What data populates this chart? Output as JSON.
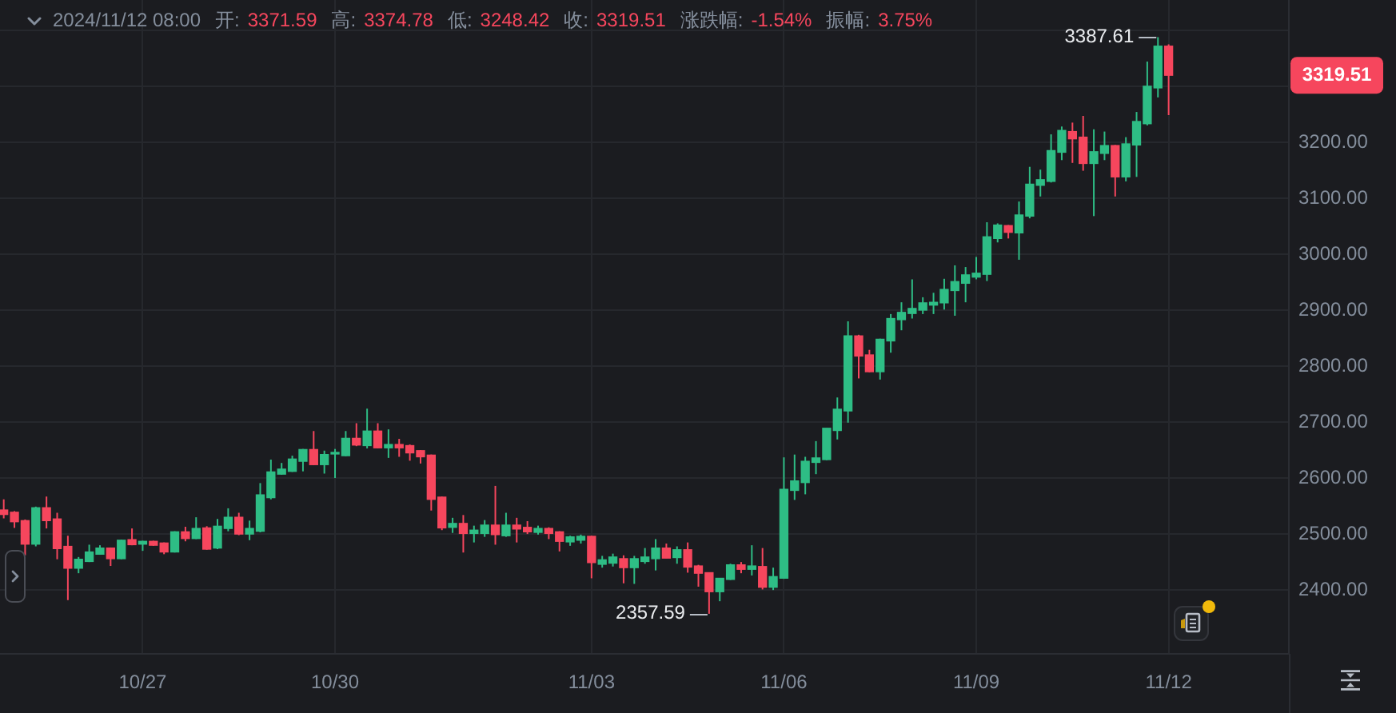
{
  "chart_data": {
    "type": "candlestick",
    "x": [
      "2024-10-25T04:00",
      "2024-10-25T08:00",
      "2024-10-25T12:00",
      "2024-10-25T16:00",
      "2024-10-25T20:00",
      "2024-10-26T00:00",
      "2024-10-26T04:00",
      "2024-10-26T08:00",
      "2024-10-26T12:00",
      "2024-10-26T16:00",
      "2024-10-26T20:00",
      "2024-10-27T00:00",
      "2024-10-27T04:00",
      "2024-10-27T08:00",
      "2024-10-27T12:00",
      "2024-10-27T16:00",
      "2024-10-27T20:00",
      "2024-10-28T00:00",
      "2024-10-28T04:00",
      "2024-10-28T08:00",
      "2024-10-28T12:00",
      "2024-10-28T16:00",
      "2024-10-28T20:00",
      "2024-10-29T00:00",
      "2024-10-29T04:00",
      "2024-10-29T08:00",
      "2024-10-29T12:00",
      "2024-10-29T16:00",
      "2024-10-29T20:00",
      "2024-10-30T00:00",
      "2024-10-30T04:00",
      "2024-10-30T08:00",
      "2024-10-30T12:00",
      "2024-10-30T16:00",
      "2024-10-30T20:00",
      "2024-10-31T00:00",
      "2024-10-31T04:00",
      "2024-10-31T08:00",
      "2024-10-31T12:00",
      "2024-10-31T16:00",
      "2024-10-31T20:00",
      "2024-11-01T00:00",
      "2024-11-01T04:00",
      "2024-11-01T08:00",
      "2024-11-01T12:00",
      "2024-11-01T16:00",
      "2024-11-01T20:00",
      "2024-11-02T00:00",
      "2024-11-02T04:00",
      "2024-11-02T08:00",
      "2024-11-02T12:00",
      "2024-11-02T16:00",
      "2024-11-02T20:00",
      "2024-11-03T00:00",
      "2024-11-03T04:00",
      "2024-11-03T08:00",
      "2024-11-03T12:00",
      "2024-11-03T16:00",
      "2024-11-03T20:00",
      "2024-11-04T00:00",
      "2024-11-04T04:00",
      "2024-11-04T08:00",
      "2024-11-04T12:00",
      "2024-11-04T16:00",
      "2024-11-04T20:00",
      "2024-11-05T00:00",
      "2024-11-05T04:00",
      "2024-11-05T08:00",
      "2024-11-05T12:00",
      "2024-11-05T16:00",
      "2024-11-05T20:00",
      "2024-11-06T00:00",
      "2024-11-06T04:00",
      "2024-11-06T08:00",
      "2024-11-06T12:00",
      "2024-11-06T16:00",
      "2024-11-06T20:00",
      "2024-11-07T00:00",
      "2024-11-07T04:00",
      "2024-11-07T08:00",
      "2024-11-07T12:00",
      "2024-11-07T16:00",
      "2024-11-07T20:00",
      "2024-11-08T00:00",
      "2024-11-08T04:00",
      "2024-11-08T08:00",
      "2024-11-08T12:00",
      "2024-11-08T16:00",
      "2024-11-08T20:00",
      "2024-11-09T00:00",
      "2024-11-09T04:00",
      "2024-11-09T08:00",
      "2024-11-09T12:00",
      "2024-11-09T16:00",
      "2024-11-09T20:00",
      "2024-11-10T00:00",
      "2024-11-10T04:00",
      "2024-11-10T08:00",
      "2024-11-10T12:00",
      "2024-11-10T16:00",
      "2024-11-10T20:00",
      "2024-11-11T00:00",
      "2024-11-11T04:00",
      "2024-11-11T08:00",
      "2024-11-11T12:00",
      "2024-11-11T16:00",
      "2024-11-11T20:00",
      "2024-11-12T00:00",
      "2024-11-12T04:00",
      "2024-11-12T08:00"
    ],
    "ohlc": [
      [
        2543,
        2562,
        2528,
        2535
      ],
      [
        2539,
        2541,
        2511,
        2522
      ],
      [
        2524,
        2526,
        2462,
        2482
      ],
      [
        2482,
        2549,
        2478,
        2547
      ],
      [
        2547,
        2567,
        2510,
        2524
      ],
      [
        2527,
        2538,
        2455,
        2474
      ],
      [
        2478,
        2497,
        2382,
        2439
      ],
      [
        2439,
        2459,
        2430,
        2455
      ],
      [
        2451,
        2481,
        2450,
        2468
      ],
      [
        2464,
        2480,
        2463,
        2475
      ],
      [
        2475,
        2476,
        2443,
        2456
      ],
      [
        2456,
        2490,
        2455,
        2489
      ],
      [
        2490,
        2510,
        2480,
        2481
      ],
      [
        2482,
        2488,
        2470,
        2487
      ],
      [
        2487,
        2488,
        2479,
        2480
      ],
      [
        2484,
        2485,
        2464,
        2468
      ],
      [
        2468,
        2505,
        2467,
        2504
      ],
      [
        2504,
        2513,
        2487,
        2492
      ],
      [
        2492,
        2530,
        2491,
        2510
      ],
      [
        2511,
        2514,
        2472,
        2473
      ],
      [
        2475,
        2527,
        2473,
        2514
      ],
      [
        2510,
        2546,
        2505,
        2530
      ],
      [
        2530,
        2538,
        2498,
        2500
      ],
      [
        2500,
        2524,
        2489,
        2510
      ],
      [
        2505,
        2591,
        2503,
        2570
      ],
      [
        2565,
        2633,
        2562,
        2611
      ],
      [
        2607,
        2627,
        2606,
        2616
      ],
      [
        2612,
        2640,
        2611,
        2634
      ],
      [
        2630,
        2652,
        2612,
        2651
      ],
      [
        2651,
        2684,
        2623,
        2624
      ],
      [
        2624,
        2649,
        2608,
        2642
      ],
      [
        2643,
        2652,
        2600,
        2645
      ],
      [
        2640,
        2684,
        2639,
        2671
      ],
      [
        2671,
        2698,
        2657,
        2659
      ],
      [
        2658,
        2724,
        2653,
        2684
      ],
      [
        2684,
        2698,
        2653,
        2654
      ],
      [
        2654,
        2687,
        2636,
        2660
      ],
      [
        2660,
        2670,
        2638,
        2654
      ],
      [
        2658,
        2660,
        2631,
        2645
      ],
      [
        2649,
        2650,
        2626,
        2638
      ],
      [
        2641,
        2642,
        2542,
        2562
      ],
      [
        2566,
        2567,
        2507,
        2511
      ],
      [
        2512,
        2529,
        2502,
        2519
      ],
      [
        2519,
        2534,
        2467,
        2501
      ],
      [
        2501,
        2515,
        2485,
        2507
      ],
      [
        2501,
        2525,
        2495,
        2516
      ],
      [
        2516,
        2586,
        2481,
        2499
      ],
      [
        2497,
        2538,
        2495,
        2516
      ],
      [
        2516,
        2529,
        2485,
        2509
      ],
      [
        2512,
        2523,
        2500,
        2504
      ],
      [
        2503,
        2515,
        2499,
        2510
      ],
      [
        2510,
        2512,
        2491,
        2501
      ],
      [
        2504,
        2505,
        2469,
        2487
      ],
      [
        2486,
        2497,
        2479,
        2495
      ],
      [
        2489,
        2499,
        2483,
        2496
      ],
      [
        2496,
        2497,
        2421,
        2449
      ],
      [
        2446,
        2461,
        2440,
        2454
      ],
      [
        2448,
        2465,
        2442,
        2459
      ],
      [
        2456,
        2462,
        2412,
        2440
      ],
      [
        2440,
        2461,
        2411,
        2456
      ],
      [
        2451,
        2475,
        2447,
        2459
      ],
      [
        2456,
        2491,
        2435,
        2475
      ],
      [
        2475,
        2483,
        2457,
        2457
      ],
      [
        2458,
        2478,
        2447,
        2472
      ],
      [
        2472,
        2485,
        2431,
        2441
      ],
      [
        2443,
        2445,
        2406,
        2430
      ],
      [
        2431,
        2431,
        2357.59,
        2397
      ],
      [
        2397,
        2421,
        2380,
        2421
      ],
      [
        2419,
        2447,
        2418,
        2445
      ],
      [
        2445,
        2450,
        2430,
        2437
      ],
      [
        2437,
        2480,
        2426,
        2443
      ],
      [
        2442,
        2475,
        2401,
        2405
      ],
      [
        2405,
        2440,
        2400,
        2424
      ],
      [
        2421,
        2637,
        2420,
        2580
      ],
      [
        2578,
        2642,
        2561,
        2595
      ],
      [
        2592,
        2638,
        2571,
        2630
      ],
      [
        2628,
        2666,
        2607,
        2636
      ],
      [
        2633,
        2689,
        2632,
        2689
      ],
      [
        2685,
        2744,
        2669,
        2723
      ],
      [
        2720,
        2880,
        2699,
        2854
      ],
      [
        2854,
        2856,
        2778,
        2818
      ],
      [
        2820,
        2829,
        2789,
        2790
      ],
      [
        2790,
        2849,
        2776,
        2848
      ],
      [
        2845,
        2893,
        2824,
        2885
      ],
      [
        2883,
        2914,
        2864,
        2896
      ],
      [
        2894,
        2955,
        2885,
        2903
      ],
      [
        2900,
        2923,
        2893,
        2913
      ],
      [
        2909,
        2931,
        2893,
        2914
      ],
      [
        2913,
        2956,
        2901,
        2937
      ],
      [
        2935,
        2980,
        2890,
        2951
      ],
      [
        2948,
        2977,
        2914,
        2963
      ],
      [
        2959,
        2995,
        2955,
        2966
      ],
      [
        2964,
        3057,
        2952,
        3031
      ],
      [
        3028,
        3055,
        3021,
        3052
      ],
      [
        3051,
        3052,
        3028,
        3039
      ],
      [
        3038,
        3094,
        2990,
        3070
      ],
      [
        3068,
        3156,
        3064,
        3125
      ],
      [
        3123,
        3151,
        3103,
        3133
      ],
      [
        3130,
        3214,
        3128,
        3185
      ],
      [
        3182,
        3228,
        3168,
        3221
      ],
      [
        3219,
        3235,
        3163,
        3206
      ],
      [
        3209,
        3247,
        3149,
        3162
      ],
      [
        3162,
        3223,
        3068,
        3183
      ],
      [
        3180,
        3219,
        3168,
        3194
      ],
      [
        3194,
        3195,
        3103,
        3138
      ],
      [
        3138,
        3209,
        3130,
        3197
      ],
      [
        3195,
        3254,
        3138,
        3237
      ],
      [
        3233,
        3344,
        3230,
        3300
      ],
      [
        3297,
        3387.61,
        3280,
        3371.59
      ],
      [
        3371.59,
        3374.78,
        3248.42,
        3319.51
      ]
    ],
    "colors": [
      "#f6465d",
      "#f6465d",
      "#f6465d",
      "#2ebd85",
      "#f6465d",
      "#f6465d",
      "#f6465d",
      "#2ebd85",
      "#2ebd85",
      "#2ebd85",
      "#f6465d",
      "#2ebd85",
      "#f6465d",
      "#2ebd85",
      "#f6465d",
      "#f6465d",
      "#2ebd85",
      "#f6465d",
      "#2ebd85",
      "#f6465d",
      "#2ebd85",
      "#2ebd85",
      "#f6465d",
      "#2ebd85",
      "#2ebd85",
      "#2ebd85",
      "#2ebd85",
      "#2ebd85",
      "#2ebd85",
      "#f6465d",
      "#2ebd85",
      "#2ebd85",
      "#2ebd85",
      "#f6465d",
      "#2ebd85",
      "#f6465d",
      "#2ebd85",
      "#f6465d",
      "#f6465d",
      "#f6465d",
      "#f6465d",
      "#f6465d",
      "#2ebd85",
      "#f6465d",
      "#2ebd85",
      "#2ebd85",
      "#f6465d",
      "#2ebd85",
      "#f6465d",
      "#f6465d",
      "#2ebd85",
      "#f6465d",
      "#f6465d",
      "#2ebd85",
      "#2ebd85",
      "#f6465d",
      "#2ebd85",
      "#2ebd85",
      "#f6465d",
      "#2ebd85",
      "#2ebd85",
      "#2ebd85",
      "#f6465d",
      "#2ebd85",
      "#f6465d",
      "#f6465d",
      "#f6465d",
      "#2ebd85",
      "#2ebd85",
      "#f6465d",
      "#2ebd85",
      "#f6465d",
      "#2ebd85",
      "#2ebd85",
      "#2ebd85",
      "#2ebd85",
      "#2ebd85",
      "#2ebd85",
      "#2ebd85",
      "#2ebd85",
      "#f6465d",
      "#f6465d",
      "#2ebd85",
      "#2ebd85",
      "#2ebd85",
      "#2ebd85",
      "#2ebd85",
      "#2ebd85",
      "#2ebd85",
      "#2ebd85",
      "#2ebd85",
      "#2ebd85",
      "#2ebd85",
      "#2ebd85",
      "#f6465d",
      "#2ebd85",
      "#2ebd85",
      "#2ebd85",
      "#2ebd85",
      "#2ebd85",
      "#f6465d",
      "#f6465d",
      "#2ebd85",
      "#2ebd85",
      "#f6465d",
      "#2ebd85",
      "#2ebd85",
      "#2ebd85",
      "#2ebd85",
      "#f6465d"
    ],
    "xlim": [
      "2024-10-25T02:36",
      "2024-11-14T05:00"
    ],
    "xticks": [
      {
        "value": "2024-10-27T08:00",
        "label": "10/27"
      },
      {
        "value": "2024-10-30T08:00",
        "label": "10/30"
      },
      {
        "value": "2024-11-03T08:00",
        "label": "11/03"
      },
      {
        "value": "2024-11-06T08:00",
        "label": "11/06"
      },
      {
        "value": "2024-11-09T08:00",
        "label": "11/09"
      },
      {
        "value": "2024-11-12T08:00",
        "label": "11/12"
      }
    ],
    "ylim": [
      2286,
      3454
    ],
    "yticks": [
      {
        "value": 2400,
        "label": "2400.00"
      },
      {
        "value": 2500,
        "label": "2500.00"
      },
      {
        "value": 2600,
        "label": "2600.00"
      },
      {
        "value": 2700,
        "label": "2700.00"
      },
      {
        "value": 2800,
        "label": "2800.00"
      },
      {
        "value": 2900,
        "label": "2900.00"
      },
      {
        "value": 3000,
        "label": "3000.00"
      },
      {
        "value": 3100,
        "label": "3100.00"
      },
      {
        "value": 3200,
        "label": "3200.00"
      },
      {
        "value": 3300,
        "label": null
      },
      {
        "value": 3400,
        "label": null
      }
    ],
    "grid": true,
    "annotations": [
      "2024/11/12 08:00",
      "开: 3371.59",
      "高: 3374.78",
      "低: 3248.42",
      "收: 3319.51",
      "涨跌幅: -1.54%",
      "振幅: 3.75%",
      {
        "text": "3387.61",
        "x": "2024-11-12T04:00",
        "y": 3387.61
      },
      {
        "text": "2357.59",
        "x": "2024-11-05T04:00",
        "y": 2357.59
      },
      "3319.51"
    ]
  }
}
